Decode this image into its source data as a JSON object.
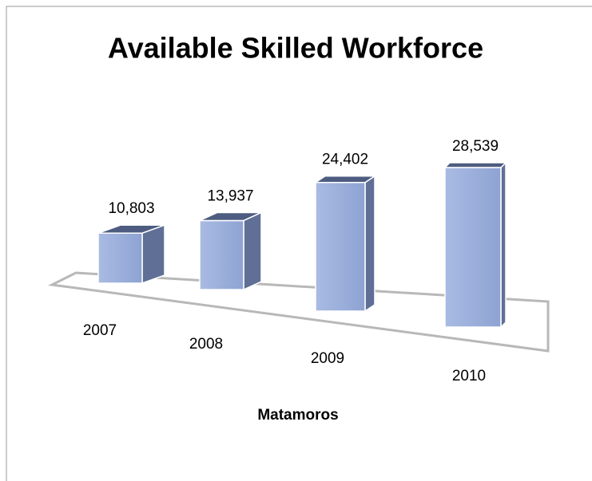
{
  "chart_data": {
    "type": "bar3d",
    "title": "Available Skilled Workforce",
    "categories": [
      "2007",
      "2008",
      "2009",
      "2010"
    ],
    "values": [
      10803,
      13937,
      24402,
      28539
    ],
    "value_labels": [
      "10,803",
      "13,937",
      "24,402",
      "28,539"
    ],
    "x_label": "Matamoros",
    "color": "#9dafd9"
  }
}
